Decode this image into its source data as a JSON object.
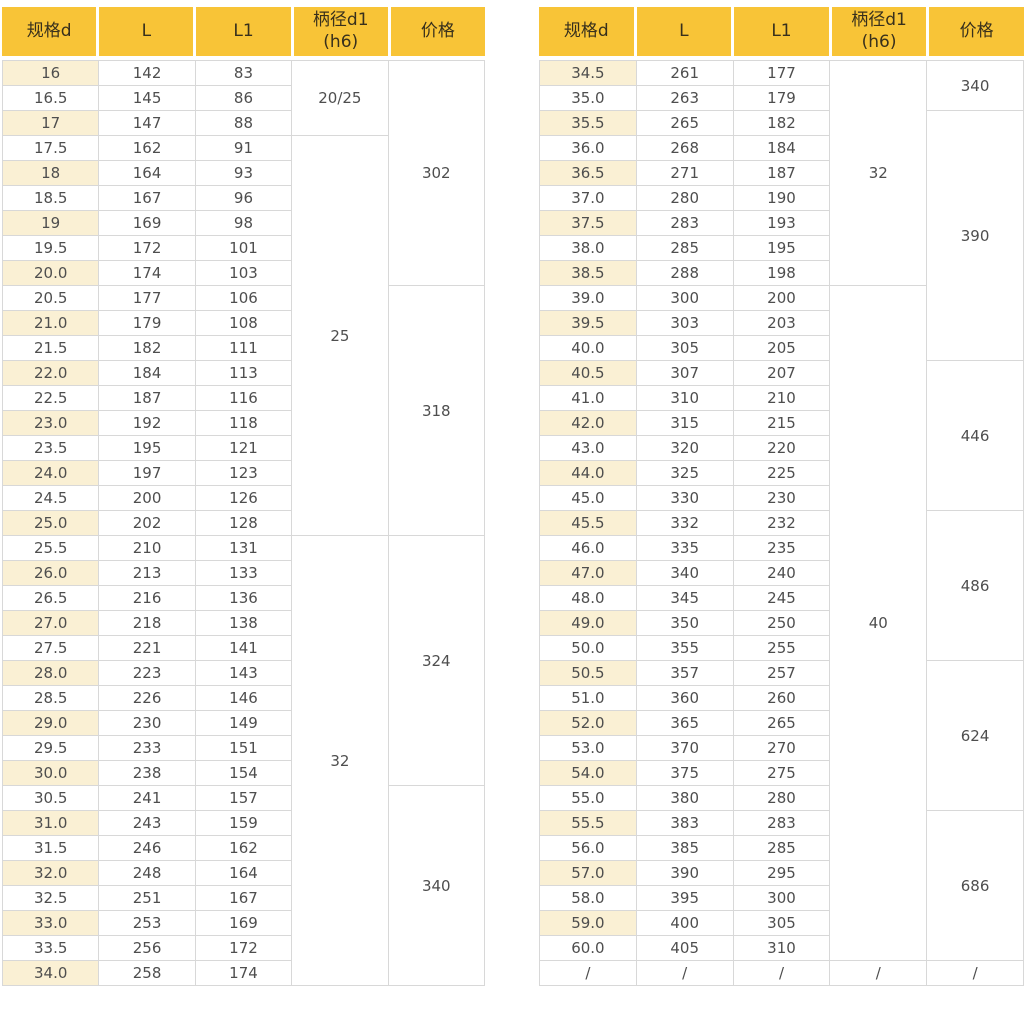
{
  "colors": {
    "header_bg": "#F8C437",
    "header_text": "#38301C",
    "body_text": "#4E4E4E",
    "alt_row_bg": "#FAF0D4",
    "border": "#D8D8D8",
    "page_bg": "#FFFFFF"
  },
  "tables": [
    {
      "name": "left",
      "headers": [
        "规格d",
        "L",
        "L1",
        "柄径d1\n(h6)",
        "价格"
      ],
      "rows": [
        [
          "16",
          "142",
          "83"
        ],
        [
          "16.5",
          "145",
          "86"
        ],
        [
          "17",
          "147",
          "88"
        ],
        [
          "17.5",
          "162",
          "91"
        ],
        [
          "18",
          "164",
          "93"
        ],
        [
          "18.5",
          "167",
          "96"
        ],
        [
          "19",
          "169",
          "98"
        ],
        [
          "19.5",
          "172",
          "101"
        ],
        [
          "20.0",
          "174",
          "103"
        ],
        [
          "20.5",
          "177",
          "106"
        ],
        [
          "21.0",
          "179",
          "108"
        ],
        [
          "21.5",
          "182",
          "111"
        ],
        [
          "22.0",
          "184",
          "113"
        ],
        [
          "22.5",
          "187",
          "116"
        ],
        [
          "23.0",
          "192",
          "118"
        ],
        [
          "23.5",
          "195",
          "121"
        ],
        [
          "24.0",
          "197",
          "123"
        ],
        [
          "24.5",
          "200",
          "126"
        ],
        [
          "25.0",
          "202",
          "128"
        ],
        [
          "25.5",
          "210",
          "131"
        ],
        [
          "26.0",
          "213",
          "133"
        ],
        [
          "26.5",
          "216",
          "136"
        ],
        [
          "27.0",
          "218",
          "138"
        ],
        [
          "27.5",
          "221",
          "141"
        ],
        [
          "28.0",
          "223",
          "143"
        ],
        [
          "28.5",
          "226",
          "146"
        ],
        [
          "29.0",
          "230",
          "149"
        ],
        [
          "29.5",
          "233",
          "151"
        ],
        [
          "30.0",
          "238",
          "154"
        ],
        [
          "30.5",
          "241",
          "157"
        ],
        [
          "31.0",
          "243",
          "159"
        ],
        [
          "31.5",
          "246",
          "162"
        ],
        [
          "32.0",
          "248",
          "164"
        ],
        [
          "32.5",
          "251",
          "167"
        ],
        [
          "33.0",
          "253",
          "169"
        ],
        [
          "33.5",
          "256",
          "172"
        ],
        [
          "34.0",
          "258",
          "174"
        ]
      ],
      "shank_blocks": [
        {
          "label": "20/25",
          "span": 3
        },
        {
          "label": "25",
          "span": 16
        },
        {
          "label": "32",
          "span": 18
        }
      ],
      "price_blocks": [
        {
          "label": "302",
          "span": 9
        },
        {
          "label": "318",
          "span": 10
        },
        {
          "label": "324",
          "span": 10
        },
        {
          "label": "340",
          "span": 8
        }
      ]
    },
    {
      "name": "right",
      "headers": [
        "规格d",
        "L",
        "L1",
        "柄径d1\n(h6)",
        "价格"
      ],
      "rows": [
        [
          "34.5",
          "261",
          "177"
        ],
        [
          "35.0",
          "263",
          "179"
        ],
        [
          "35.5",
          "265",
          "182"
        ],
        [
          "36.0",
          "268",
          "184"
        ],
        [
          "36.5",
          "271",
          "187"
        ],
        [
          "37.0",
          "280",
          "190"
        ],
        [
          "37.5",
          "283",
          "193"
        ],
        [
          "38.0",
          "285",
          "195"
        ],
        [
          "38.5",
          "288",
          "198"
        ],
        [
          "39.0",
          "300",
          "200"
        ],
        [
          "39.5",
          "303",
          "203"
        ],
        [
          "40.0",
          "305",
          "205"
        ],
        [
          "40.5",
          "307",
          "207"
        ],
        [
          "41.0",
          "310",
          "210"
        ],
        [
          "42.0",
          "315",
          "215"
        ],
        [
          "43.0",
          "320",
          "220"
        ],
        [
          "44.0",
          "325",
          "225"
        ],
        [
          "45.0",
          "330",
          "230"
        ],
        [
          "45.5",
          "332",
          "232"
        ],
        [
          "46.0",
          "335",
          "235"
        ],
        [
          "47.0",
          "340",
          "240"
        ],
        [
          "48.0",
          "345",
          "245"
        ],
        [
          "49.0",
          "350",
          "250"
        ],
        [
          "50.0",
          "355",
          "255"
        ],
        [
          "50.5",
          "357",
          "257"
        ],
        [
          "51.0",
          "360",
          "260"
        ],
        [
          "52.0",
          "365",
          "265"
        ],
        [
          "53.0",
          "370",
          "270"
        ],
        [
          "54.0",
          "375",
          "275"
        ],
        [
          "55.0",
          "380",
          "280"
        ],
        [
          "55.5",
          "383",
          "283"
        ],
        [
          "56.0",
          "385",
          "285"
        ],
        [
          "57.0",
          "390",
          "295"
        ],
        [
          "58.0",
          "395",
          "300"
        ],
        [
          "59.0",
          "400",
          "305"
        ],
        [
          "60.0",
          "405",
          "310"
        ],
        [
          "/",
          "/",
          "/"
        ]
      ],
      "shank_blocks": [
        {
          "label": "32",
          "span": 9
        },
        {
          "label": "40",
          "span": 27
        },
        {
          "label": "/",
          "span": 1
        }
      ],
      "price_blocks": [
        {
          "label": "340",
          "span": 2
        },
        {
          "label": "390",
          "span": 10
        },
        {
          "label": "446",
          "span": 6
        },
        {
          "label": "486",
          "span": 6
        },
        {
          "label": "624",
          "span": 6
        },
        {
          "label": "686",
          "span": 6
        },
        {
          "label": "/",
          "span": 1
        }
      ]
    }
  ]
}
